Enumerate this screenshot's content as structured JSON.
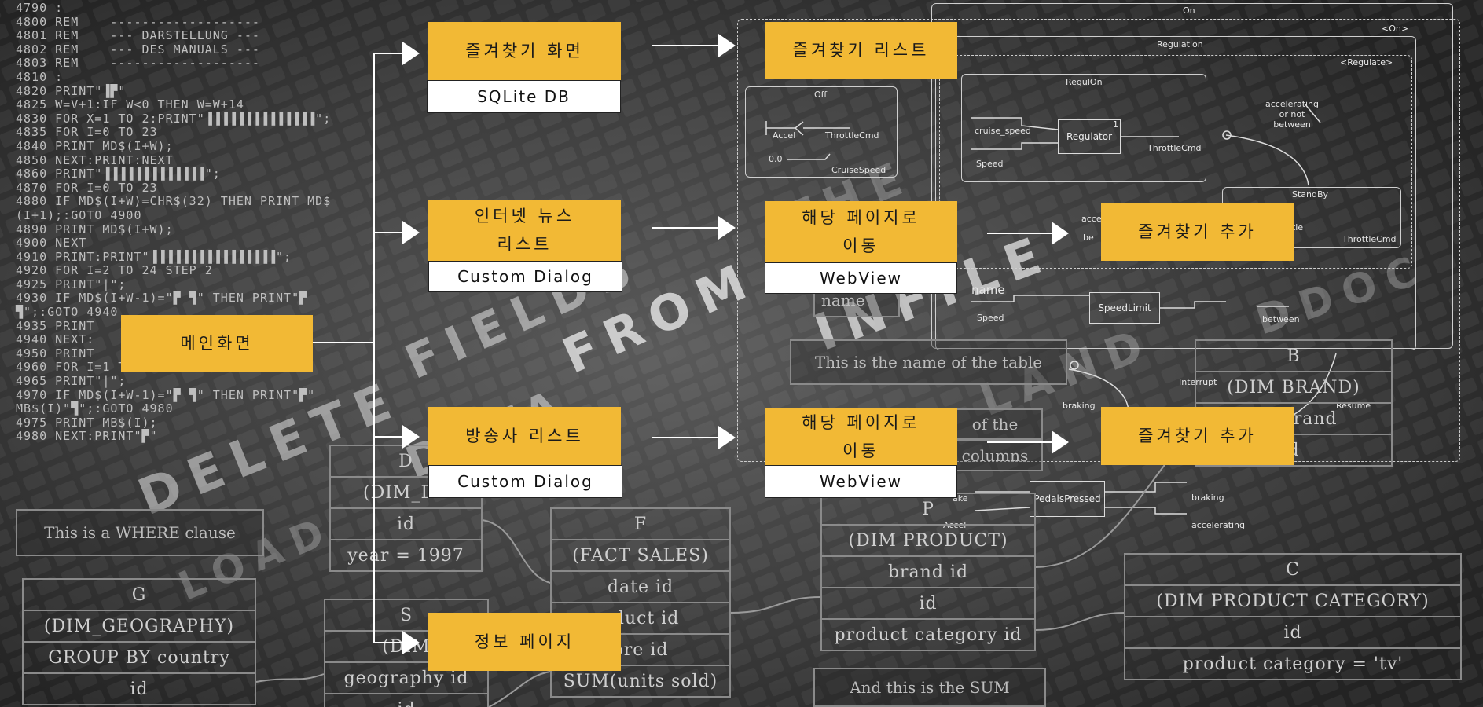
{
  "colors": {
    "accent": "#f2b935",
    "background": "#3a3a3a",
    "white_box": "#ffffff"
  },
  "code_lines": [
    "4790 :",
    "4800 REM    -------------------",
    "4801 REM    --- DARSTELLUNG ---",
    "4802 REM    --- DES MANUALS ---",
    "4803 REM    -------------------",
    "4810 :",
    "4820 PRINT\"▐▛\"",
    "4825 W=V+1:IF W<0 THEN W=W+14",
    "4830 FOR X=1 TO 2:PRINT\"▐▐▐▐▐▐▐▐▐▐▐▐▐▐\";",
    "4835 FOR I=0 TO 23",
    "4840 PRINT MD$(I+W);",
    "4850 NEXT:PRINT:NEXT",
    "4860 PRINT\"▐▐▐▐▐▐▐▐▐▐▐▐▐\";",
    "4870 FOR I=0 TO 23",
    "4880 IF MD$(I+W)=CHR$(32) THEN PRINT MD$",
    "(I+1);:GOTO 4900",
    "4890 PRINT MD$(I+W);",
    "4900 NEXT",
    "4910 PRINT:PRINT\"▐▐▐▐▐▐▐▐▐▐▐▐▐▐▐▐\";",
    "4920 FOR I=2 TO 24 STEP 2",
    "4925 PRINT\"|\";",
    "4930 IF MD$(I+W-1)=\"▛ ▜\" THEN PRINT\"▛",
    "▜\";:GOTO 4940",
    "4935 PRINT",
    "4940 NEXT:",
    "4950 PRINT",
    "4960 FOR I=1 TO 24 STEP 2",
    "4965 PRINT\"|\";",
    "4970 IF MD$(I+W-1)=\"▛ ▜\" THEN PRINT\"▛\"",
    "MB$(I)\"▜\";:GOTO 4980",
    "4975 PRINT MB$(I);",
    "4980 NEXT:PRINT\"▛\""
  ],
  "bg_words": [
    "DELETE",
    "FIELDS",
    "FROM",
    "INFILE",
    "DATA",
    "LOAD",
    "THE",
    "LAND",
    "DDOC"
  ],
  "tables": {
    "d": [
      "D",
      "(DIM_DA",
      "id",
      "year = 1997"
    ],
    "f": [
      "F",
      "(FACT SALES)",
      "date id",
      "oduct id",
      "ore id",
      "SUM(units sold)"
    ],
    "g": [
      "G",
      "(DIM_GEOGRAPHY)",
      "GROUP BY country",
      "id"
    ],
    "s": [
      "S",
      "(DIM",
      "geography id",
      "id"
    ],
    "p": [
      "P",
      "(DIM PRODUCT)",
      "brand id",
      "id",
      "product category id"
    ],
    "c": [
      "C",
      "(DIM PRODUCT CATEGORY)",
      "id",
      "product category = 'tv'"
    ],
    "b": [
      "B",
      "(DIM BRAND)",
      "BY brand",
      "d"
    ]
  },
  "notes": {
    "where": "This is a WHERE clause",
    "table_name": "This is the name of the table",
    "of_the": "of the",
    "columns": "columns",
    "sum": "And this is the SUM",
    "name": "name"
  },
  "statechart": {
    "on": "On",
    "on_tag": "<On>",
    "regulation": "Regulation",
    "regulate_tag": "<Regulate>",
    "regulon": "RegulOn",
    "off": "Off",
    "accel": "Accel",
    "throttlecmd": "ThrottleCmd",
    "cruisespeed": "CruiseSpeed",
    "cruise_speed": "cruise_speed",
    "regulator": "Regulator",
    "speed": "Speed",
    "acc_or_not": "accelerating\nor not\nbetween",
    "standby": "StandBy",
    "throttle": "gThrottle",
    "speedlimit": "SpeedLimit",
    "between": "between",
    "interrupt": "Interrupt",
    "braking": "braking",
    "resume": "Resume",
    "pedalspressed": "PedalsPressed",
    "accelerating": "accelerating",
    "brake": "ake",
    "accel2": "Accel",
    "speed2": "Speed",
    "one": "1",
    "zero": "0.0",
    "acce": "acce",
    "be": "be"
  },
  "flow": {
    "main": "메인화면",
    "favorites_screen": "즐겨찾기 화면",
    "sqlite": "SQLite DB",
    "favorites_list": "즐겨찾기 리스트",
    "internet_news": "인터넷 뉴스\n리스트",
    "custom_dialog_1": "Custom Dialog",
    "goto_page_1": "해당 페이지로\n이동",
    "webview_1": "WebView",
    "add_favorite_1": "즐겨찾기 추가",
    "broadcaster_list": "방송사 리스트",
    "custom_dialog_2": "Custom Dialog",
    "goto_page_2": "해당 페이지로\n이동",
    "webview_2": "WebView",
    "add_favorite_2": "즐겨찾기 추가",
    "info_page": "정보 페이지"
  }
}
